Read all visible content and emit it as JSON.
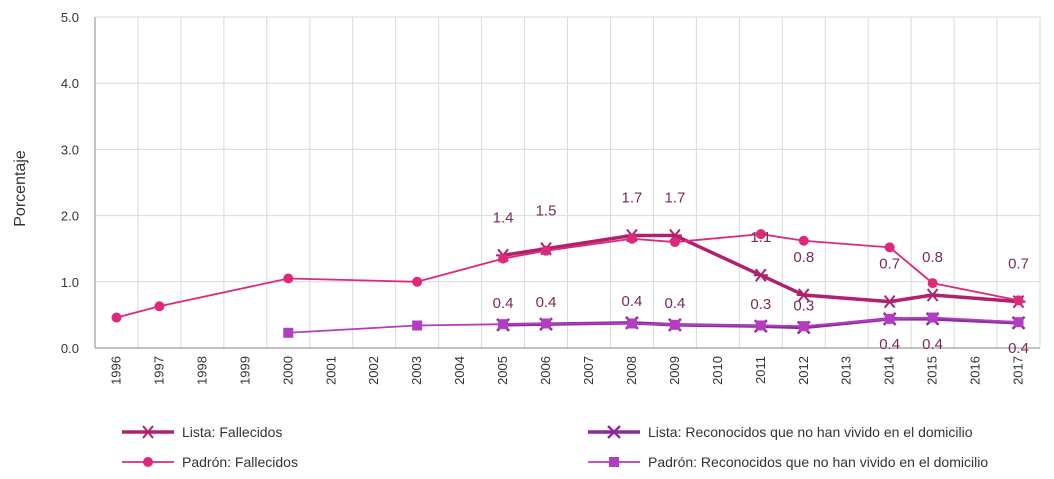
{
  "chart_data": {
    "type": "line",
    "ylabel": "Porcentaje",
    "ylim": [
      0,
      5
    ],
    "yticks": [
      "0.0",
      "1.0",
      "2.0",
      "3.0",
      "4.0",
      "5.0"
    ],
    "categories": [
      "1996",
      "1997",
      "1998",
      "1999",
      "2000",
      "2001",
      "2002",
      "2003",
      "2004",
      "2005",
      "2006",
      "2007",
      "2008",
      "2009",
      "2010",
      "2011",
      "2012",
      "2013",
      "2014",
      "2015",
      "2016",
      "2017"
    ],
    "grid": true,
    "series": [
      {
        "name": "Lista: Fallecidos",
        "color": "#b0206e",
        "marker": "asterisk",
        "values": [
          null,
          null,
          null,
          null,
          null,
          null,
          null,
          null,
          null,
          1.4,
          1.5,
          null,
          1.7,
          1.7,
          null,
          1.1,
          0.8,
          null,
          0.7,
          0.8,
          null,
          0.7
        ],
        "labels": [
          null,
          null,
          null,
          null,
          null,
          null,
          null,
          null,
          null,
          "1.4",
          "1.5",
          null,
          "1.7",
          "1.7",
          null,
          "1.1",
          "0.8",
          null,
          "0.7",
          "0.8",
          null,
          "0.7"
        ]
      },
      {
        "name": "Padrón: Fallecidos",
        "color": "#e0287a",
        "marker": "circle",
        "values": [
          0.46,
          0.63,
          null,
          null,
          1.05,
          null,
          null,
          1.0,
          null,
          1.35,
          1.47,
          null,
          1.65,
          1.6,
          null,
          1.72,
          1.62,
          null,
          1.52,
          0.98,
          null,
          0.72
        ]
      },
      {
        "name": "Lista: Reconocidos que no han vivido en el domicilio",
        "color": "#8e2a9e",
        "marker": "x",
        "values": [
          null,
          null,
          null,
          null,
          null,
          null,
          null,
          null,
          null,
          0.35,
          0.36,
          null,
          0.38,
          0.35,
          null,
          0.33,
          0.31,
          null,
          0.44,
          0.44,
          null,
          0.38
        ],
        "labels": [
          null,
          null,
          null,
          null,
          null,
          null,
          null,
          null,
          null,
          "0.4",
          "0.4",
          null,
          "0.4",
          "0.4",
          null,
          "0.3",
          "0.3",
          null,
          "0.4",
          "0.4",
          null,
          "0.4"
        ]
      },
      {
        "name": "Padrón: Reconocidos que no han vivido en el domicilio",
        "color": "#b33cc0",
        "marker": "square",
        "values": [
          null,
          null,
          null,
          null,
          0.23,
          null,
          null,
          0.34,
          null,
          0.36,
          0.37,
          null,
          0.37,
          0.35,
          null,
          0.34,
          0.33,
          null,
          0.44,
          0.46,
          null,
          0.39
        ]
      }
    ]
  }
}
